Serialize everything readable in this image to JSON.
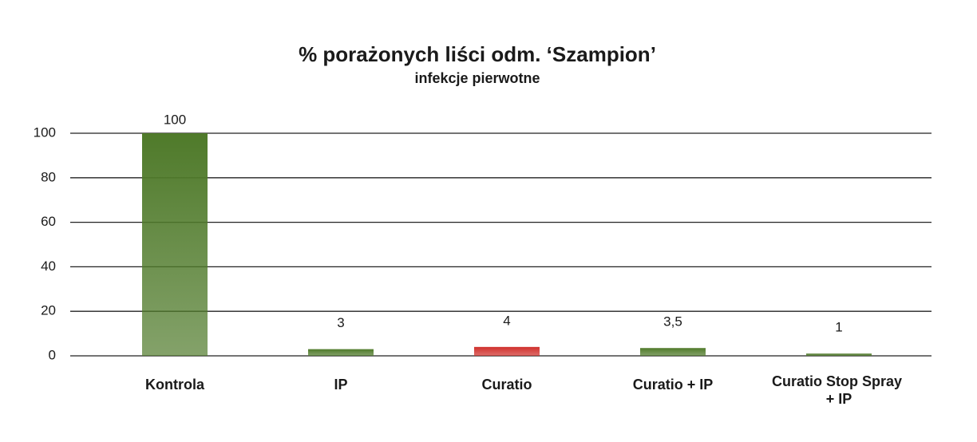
{
  "chart_data": {
    "type": "bar",
    "title": "% porażonych liści odm. ‘Szampion’",
    "subtitle": "infekcje pierwotne",
    "categories": [
      "Kontrola",
      "IP",
      "Curatio",
      "Curatio + IP",
      "Curatio Stop Spray + IP"
    ],
    "values": [
      100,
      3,
      4,
      3.5,
      1
    ],
    "value_labels": [
      "100",
      "3",
      "4",
      "3,5",
      "1"
    ],
    "colors": [
      "#4f7a2a",
      "#4f7a2a",
      "#d0302c",
      "#4f7a2a",
      "#4f7a2a"
    ],
    "ylim": [
      0,
      100
    ],
    "yticks": [
      0,
      20,
      40,
      60,
      80,
      100
    ],
    "grid": true
  }
}
